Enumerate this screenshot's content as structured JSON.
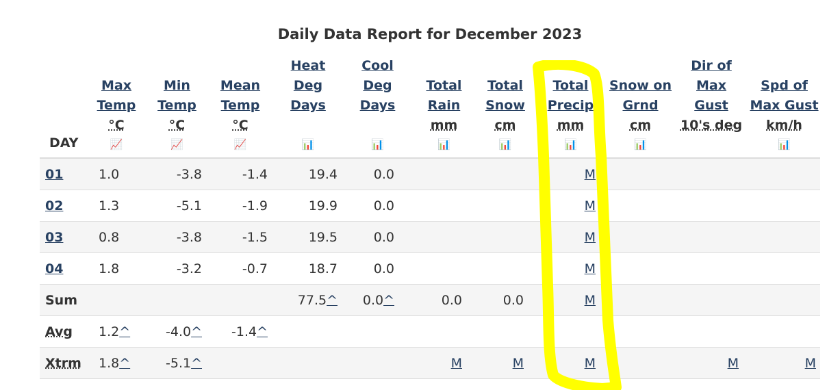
{
  "report": {
    "title": "Daily Data Report for December 2023"
  },
  "columns": [
    {
      "id": "day",
      "label": "DAY"
    },
    {
      "id": "max",
      "l1": "Max",
      "l2": "Temp",
      "unit": "°C",
      "icon": "line-chart-icon"
    },
    {
      "id": "min",
      "l1": "Min",
      "l2": "Temp",
      "unit": "°C",
      "icon": "line-chart-icon"
    },
    {
      "id": "mean",
      "l1": "Mean",
      "l2": "Temp",
      "unit": "°C",
      "icon": "line-chart-icon"
    },
    {
      "id": "heat",
      "l1": "Heat",
      "l2": "Deg",
      "l3": "Days",
      "icon": "bar-chart-icon"
    },
    {
      "id": "cool",
      "l1": "Cool",
      "l2": "Deg",
      "l3": "Days",
      "icon": "bar-chart-icon"
    },
    {
      "id": "rain",
      "l1": "Total",
      "l2": "Rain",
      "unit": "mm",
      "icon": "bar-chart-icon"
    },
    {
      "id": "snow",
      "l1": "Total",
      "l2": "Snow",
      "unit": "cm",
      "icon": "bar-chart-icon"
    },
    {
      "id": "precip",
      "l1": "Total",
      "l2": "Precip",
      "unit": "mm",
      "icon": "bar-chart-icon"
    },
    {
      "id": "grnd",
      "l1": "Snow on",
      "l2": "Grnd",
      "unit": "cm",
      "icon": "bar-chart-icon"
    },
    {
      "id": "dir",
      "l1": "Dir of",
      "l2": "Max",
      "l3": "Gust",
      "unit": "10's deg"
    },
    {
      "id": "spd",
      "l1": "Spd of",
      "l2": "Max Gust",
      "unit": "km/h",
      "icon": "bar-chart-icon"
    }
  ],
  "rows": [
    {
      "day": "01",
      "max": "1.0",
      "min": "-3.8",
      "mean": "-1.4",
      "heat": "19.4",
      "cool": "0.0",
      "rain": "",
      "snow": "",
      "precip": "M",
      "grnd": "",
      "dir": "",
      "spd": ""
    },
    {
      "day": "02",
      "max": "1.3",
      "min": "-5.1",
      "mean": "-1.9",
      "heat": "19.9",
      "cool": "0.0",
      "rain": "",
      "snow": "",
      "precip": "M",
      "grnd": "",
      "dir": "",
      "spd": ""
    },
    {
      "day": "03",
      "max": "0.8",
      "min": "-3.8",
      "mean": "-1.5",
      "heat": "19.5",
      "cool": "0.0",
      "rain": "",
      "snow": "",
      "precip": "M",
      "grnd": "",
      "dir": "",
      "spd": ""
    },
    {
      "day": "04",
      "max": "1.8",
      "min": "-3.2",
      "mean": "-0.7",
      "heat": "18.7",
      "cool": "0.0",
      "rain": "",
      "snow": "",
      "precip": "M",
      "grnd": "",
      "dir": "",
      "spd": ""
    }
  ],
  "summary": {
    "sum": {
      "label": "Sum",
      "heat": "77.5",
      "cool": "0.0",
      "rain": "0.0",
      "snow": "0.0",
      "precip": "M"
    },
    "avg": {
      "label": "Avg",
      "max": "1.2",
      "min": "-4.0",
      "mean": "-1.4"
    },
    "xtrm": {
      "label": "Xtrm",
      "max": "1.8",
      "min": "-5.1",
      "rain": "M",
      "snow": "M",
      "precip": "M",
      "dir": "M",
      "spd": "M"
    }
  },
  "caret": "^",
  "colors": {
    "link": "#284162",
    "highlight": "#ffff00",
    "stripe": "#f5f5f5"
  }
}
